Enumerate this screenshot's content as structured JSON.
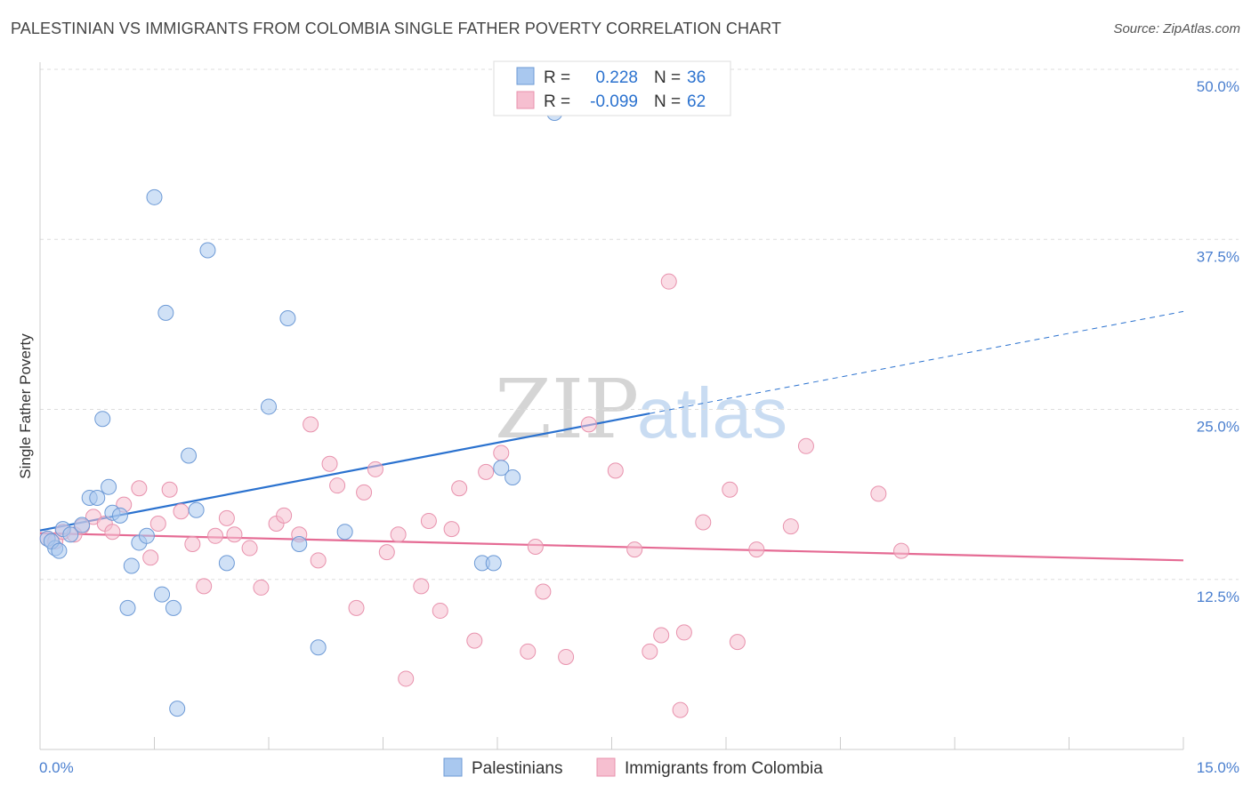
{
  "title": "PALESTINIAN VS IMMIGRANTS FROM COLOMBIA SINGLE FATHER POVERTY CORRELATION CHART",
  "source": "Source: ZipAtlas.com",
  "watermark": {
    "part1": "ZIP",
    "part2": "atlas"
  },
  "colors": {
    "blue_fill": "#a9c8ef",
    "blue_stroke": "#6d9ad6",
    "blue_line": "#2b72cf",
    "pink_fill": "#f6bfd0",
    "pink_stroke": "#e892ad",
    "pink_line": "#e56b94",
    "grid": "#dddddd",
    "tick_text": "#4a7fcf"
  },
  "legend_top": {
    "rows": [
      {
        "r_label": "R = ",
        "r_value": "0.228",
        "n_label": "N = ",
        "n_value": "36",
        "series": "blue"
      },
      {
        "r_label": "R = ",
        "r_value": "-0.099",
        "n_label": "N = ",
        "n_value": "62",
        "series": "pink"
      }
    ]
  },
  "chart_data": {
    "type": "scatter",
    "title": "PALESTINIAN VS IMMIGRANTS FROM COLOMBIA SINGLE FATHER POVERTY CORRELATION CHART",
    "xlabel": "",
    "ylabel": "Single Father Poverty",
    "xlim": [
      0,
      15
    ],
    "ylim": [
      0,
      50
    ],
    "x_tick_labels": [
      "0.0%",
      "15.0%"
    ],
    "y_ticks": [
      12.5,
      25.0,
      37.5,
      50.0
    ],
    "y_tick_labels": [
      "12.5%",
      "25.0%",
      "37.5%",
      "50.0%"
    ],
    "grid": "horizontal dashed",
    "legend_position": "bottom-center",
    "series": [
      {
        "name": "Palestinians",
        "color": "#a9c8ef",
        "points": [
          [
            0.1,
            15.5
          ],
          [
            0.2,
            14.8
          ],
          [
            0.3,
            16.2
          ],
          [
            0.4,
            15.8
          ],
          [
            0.55,
            16.5
          ],
          [
            0.65,
            18.5
          ],
          [
            0.75,
            18.5
          ],
          [
            0.82,
            24.3
          ],
          [
            0.9,
            19.3
          ],
          [
            0.95,
            17.4
          ],
          [
            1.05,
            17.2
          ],
          [
            1.15,
            10.4
          ],
          [
            1.2,
            13.5
          ],
          [
            1.3,
            15.2
          ],
          [
            1.4,
            15.7
          ],
          [
            1.5,
            40.6
          ],
          [
            1.6,
            11.4
          ],
          [
            1.65,
            32.1
          ],
          [
            1.75,
            10.4
          ],
          [
            1.8,
            3.0
          ],
          [
            1.95,
            21.6
          ],
          [
            2.05,
            17.6
          ],
          [
            2.2,
            36.7
          ],
          [
            2.45,
            13.7
          ],
          [
            3.0,
            25.2
          ],
          [
            3.25,
            31.7
          ],
          [
            3.4,
            15.1
          ],
          [
            3.65,
            7.5
          ],
          [
            4.0,
            16.0
          ],
          [
            5.8,
            13.7
          ],
          [
            5.95,
            13.7
          ],
          [
            6.05,
            20.7
          ],
          [
            6.2,
            20.0
          ],
          [
            6.75,
            46.8
          ],
          [
            0.15,
            15.3
          ],
          [
            0.25,
            14.6
          ]
        ]
      },
      {
        "name": "Immigrants from Colombia",
        "color": "#f6bfd0",
        "points": [
          [
            0.1,
            15.5
          ],
          [
            0.2,
            15.3
          ],
          [
            0.3,
            16.0
          ],
          [
            0.45,
            15.8
          ],
          [
            0.55,
            16.4
          ],
          [
            0.7,
            17.1
          ],
          [
            0.85,
            16.6
          ],
          [
            0.95,
            16.0
          ],
          [
            1.1,
            18.0
          ],
          [
            1.3,
            19.2
          ],
          [
            1.45,
            14.1
          ],
          [
            1.55,
            16.6
          ],
          [
            1.7,
            19.1
          ],
          [
            1.85,
            17.5
          ],
          [
            2.0,
            15.1
          ],
          [
            2.15,
            12.0
          ],
          [
            2.3,
            15.7
          ],
          [
            2.45,
            17.0
          ],
          [
            2.55,
            15.8
          ],
          [
            2.75,
            14.8
          ],
          [
            2.9,
            11.9
          ],
          [
            3.1,
            16.6
          ],
          [
            3.2,
            17.2
          ],
          [
            3.4,
            15.8
          ],
          [
            3.55,
            23.9
          ],
          [
            3.65,
            13.9
          ],
          [
            3.8,
            21.0
          ],
          [
            3.9,
            19.4
          ],
          [
            4.15,
            10.4
          ],
          [
            4.25,
            18.9
          ],
          [
            4.4,
            20.6
          ],
          [
            4.55,
            14.5
          ],
          [
            4.7,
            15.8
          ],
          [
            4.8,
            5.2
          ],
          [
            5.0,
            12.0
          ],
          [
            5.1,
            16.8
          ],
          [
            5.25,
            10.2
          ],
          [
            5.4,
            16.2
          ],
          [
            5.5,
            19.2
          ],
          [
            5.7,
            8.0
          ],
          [
            5.85,
            20.4
          ],
          [
            6.05,
            21.8
          ],
          [
            6.4,
            7.2
          ],
          [
            6.5,
            14.9
          ],
          [
            6.6,
            11.6
          ],
          [
            6.9,
            6.8
          ],
          [
            7.2,
            23.9
          ],
          [
            7.55,
            20.5
          ],
          [
            7.8,
            14.7
          ],
          [
            8.0,
            7.2
          ],
          [
            8.15,
            8.4
          ],
          [
            8.25,
            34.4
          ],
          [
            8.4,
            2.9
          ],
          [
            8.45,
            8.6
          ],
          [
            8.7,
            16.7
          ],
          [
            9.05,
            19.1
          ],
          [
            9.15,
            7.9
          ],
          [
            9.4,
            14.7
          ],
          [
            9.85,
            16.4
          ],
          [
            10.05,
            22.3
          ],
          [
            11.0,
            18.8
          ],
          [
            11.3,
            14.6
          ]
        ]
      }
    ],
    "trend_lines": [
      {
        "series": "Palestinians",
        "x": [
          0.0,
          8.0
        ],
        "y": [
          16.1,
          24.7
        ],
        "dashed_extension_x": [
          8.0,
          15.0
        ],
        "dashed_extension_y": [
          24.7,
          32.2
        ]
      },
      {
        "series": "Immigrants from Colombia",
        "x": [
          0.0,
          15.0
        ],
        "y": [
          15.9,
          13.9
        ]
      }
    ]
  },
  "legend_bottom": {
    "items": [
      {
        "label": "Palestinians",
        "series": "blue"
      },
      {
        "label": "Immigrants from Colombia",
        "series": "pink"
      }
    ]
  }
}
